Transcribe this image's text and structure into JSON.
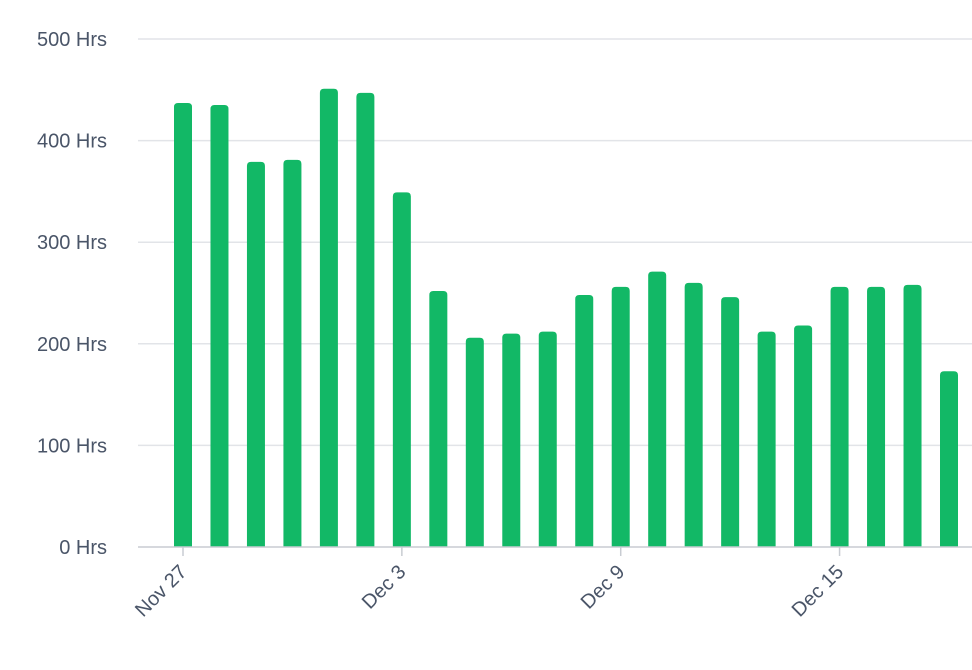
{
  "chart_data": {
    "type": "bar",
    "x": [
      "Nov 27",
      "Nov 28",
      "Nov 29",
      "Nov 30",
      "Dec 1",
      "Dec 2",
      "Dec 3",
      "Dec 4",
      "Dec 5",
      "Dec 6",
      "Dec 7",
      "Dec 8",
      "Dec 9",
      "Dec 10",
      "Dec 11",
      "Dec 12",
      "Dec 13",
      "Dec 14",
      "Dec 15",
      "Dec 16",
      "Dec 17",
      "Dec 18"
    ],
    "values": [
      437,
      435,
      379,
      381,
      451,
      447,
      349,
      252,
      206,
      210,
      212,
      248,
      256,
      271,
      260,
      246,
      212,
      218,
      256,
      256,
      258,
      173
    ],
    "x_tick_labels": [
      "Nov 27",
      "Dec 3",
      "Dec 9",
      "Dec 15"
    ],
    "y_ticks": [
      0,
      100,
      200,
      300,
      400,
      500
    ],
    "y_tick_labels": [
      "0 Hrs",
      "100 Hrs",
      "200 Hrs",
      "300 Hrs",
      "400 Hrs",
      "500 Hrs"
    ],
    "ylim": [
      0,
      500
    ],
    "grid": true,
    "colors": {
      "bar": "#12b866"
    },
    "title": "",
    "xlabel": "",
    "ylabel": ""
  }
}
